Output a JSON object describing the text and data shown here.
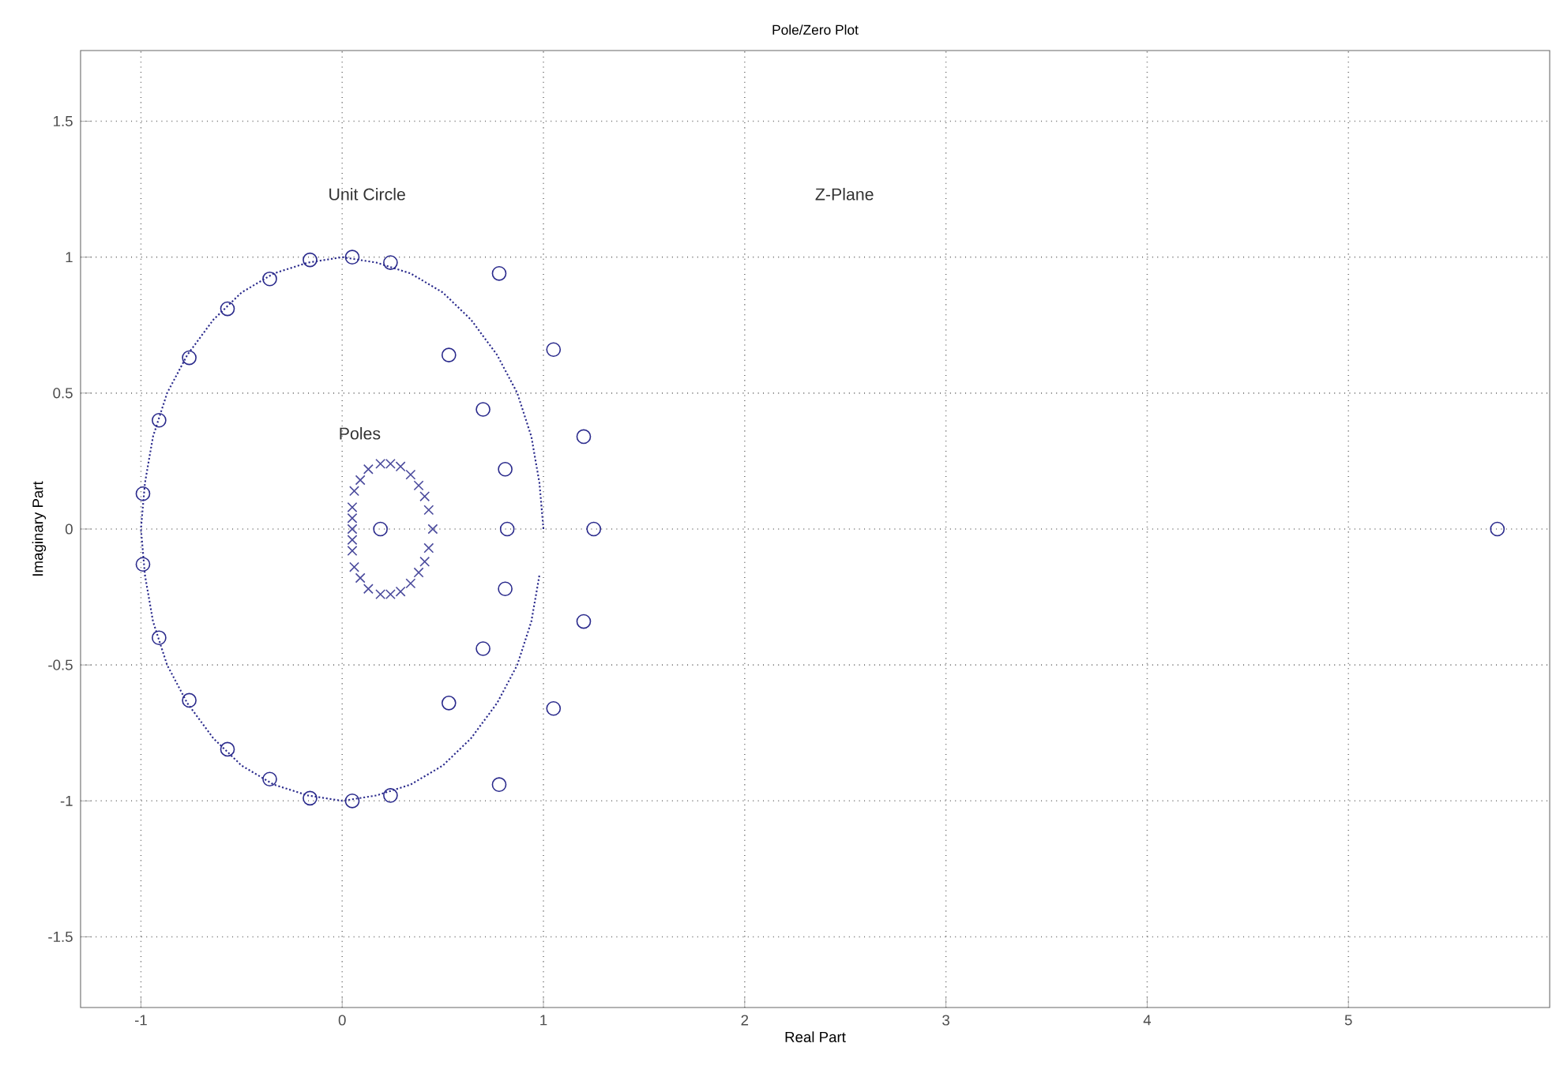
{
  "chart_data": {
    "type": "scatter",
    "title": "Pole/Zero Plot",
    "xlabel": "Real Part",
    "ylabel": "Imaginary Part",
    "xlim": [
      -1.3,
      6.0
    ],
    "ylim": [
      -1.76,
      1.76
    ],
    "xticks": [
      -1,
      0,
      1,
      2,
      3,
      4,
      5
    ],
    "yticks": [
      -1.5,
      -1,
      -0.5,
      0,
      0.5,
      1,
      1.5
    ],
    "grid": true,
    "series": [
      {
        "type": "line",
        "color": "#2a2a8c",
        "line_style": "dotted",
        "marker": "none",
        "x": [
          1,
          0.98,
          0.94,
          0.87,
          0.77,
          0.64,
          0.5,
          0.34,
          0.17,
          0,
          -0.17,
          -0.34,
          -0.5,
          -0.64,
          -0.77,
          -0.87,
          -0.94,
          -0.98,
          -1,
          -0.98,
          -0.94,
          -0.87,
          -0.77,
          -0.64,
          -0.5,
          -0.34,
          -0.17,
          0,
          0.17,
          0.34,
          0.5,
          0.64,
          0.77,
          0.87,
          0.94,
          0.98
        ],
        "values": [
          0,
          0.17,
          0.34,
          0.5,
          0.64,
          0.77,
          0.87,
          0.94,
          0.98,
          1,
          0.98,
          0.94,
          0.87,
          0.77,
          0.64,
          0.5,
          0.34,
          0.17,
          0,
          -0.17,
          -0.34,
          -0.5,
          -0.64,
          -0.77,
          -0.87,
          -0.94,
          -0.98,
          -1,
          -0.98,
          -0.94,
          -0.87,
          -0.77,
          -0.64,
          -0.5,
          -0.34,
          -0.17
        ]
      },
      {
        "color": "#2a2a8c",
        "marker": "circle",
        "x": [
          0.05,
          -0.16,
          -0.36,
          -0.57,
          -0.76,
          -0.91,
          -0.99,
          -0.99,
          -0.91,
          -0.76,
          -0.57,
          -0.36,
          -0.16,
          0.05,
          0.24,
          0.24,
          0.78,
          0.78,
          0.53,
          0.53,
          0.7,
          0.7,
          0.81,
          0.81,
          0.82,
          1.05,
          1.05,
          1.2,
          1.2,
          1.25,
          0.19,
          5.74
        ],
        "values": [
          1,
          0.99,
          0.92,
          0.81,
          0.63,
          0.4,
          0.13,
          -0.13,
          -0.4,
          -0.63,
          -0.81,
          -0.92,
          -0.99,
          -1,
          0.98,
          -0.98,
          0.94,
          -0.94,
          0.64,
          -0.64,
          0.44,
          -0.44,
          0.22,
          -0.22,
          0,
          0.66,
          -0.66,
          0.34,
          -0.34,
          0,
          0,
          0
        ]
      },
      {
        "color": "#4a4a9c",
        "marker": "cross",
        "x": [
          0.06,
          0.09,
          0.13,
          0.19,
          0.24,
          0.29,
          0.34,
          0.38,
          0.41,
          0.43,
          0.45,
          0.43,
          0.41,
          0.38,
          0.34,
          0.29,
          0.24,
          0.19,
          0.13,
          0.09,
          0.06,
          0.05,
          0.05,
          0.05,
          0.05,
          0.05
        ],
        "values": [
          0.14,
          0.18,
          0.22,
          0.24,
          0.24,
          0.23,
          0.2,
          0.16,
          0.12,
          0.07,
          0,
          -0.07,
          -0.12,
          -0.16,
          -0.2,
          -0.23,
          -0.24,
          -0.24,
          -0.22,
          -0.18,
          -0.14,
          0.08,
          0.04,
          0,
          -0.04,
          -0.08
        ]
      }
    ],
    "annotations": [
      "Unit Circle",
      "Poles",
      "Z-Plane"
    ]
  }
}
